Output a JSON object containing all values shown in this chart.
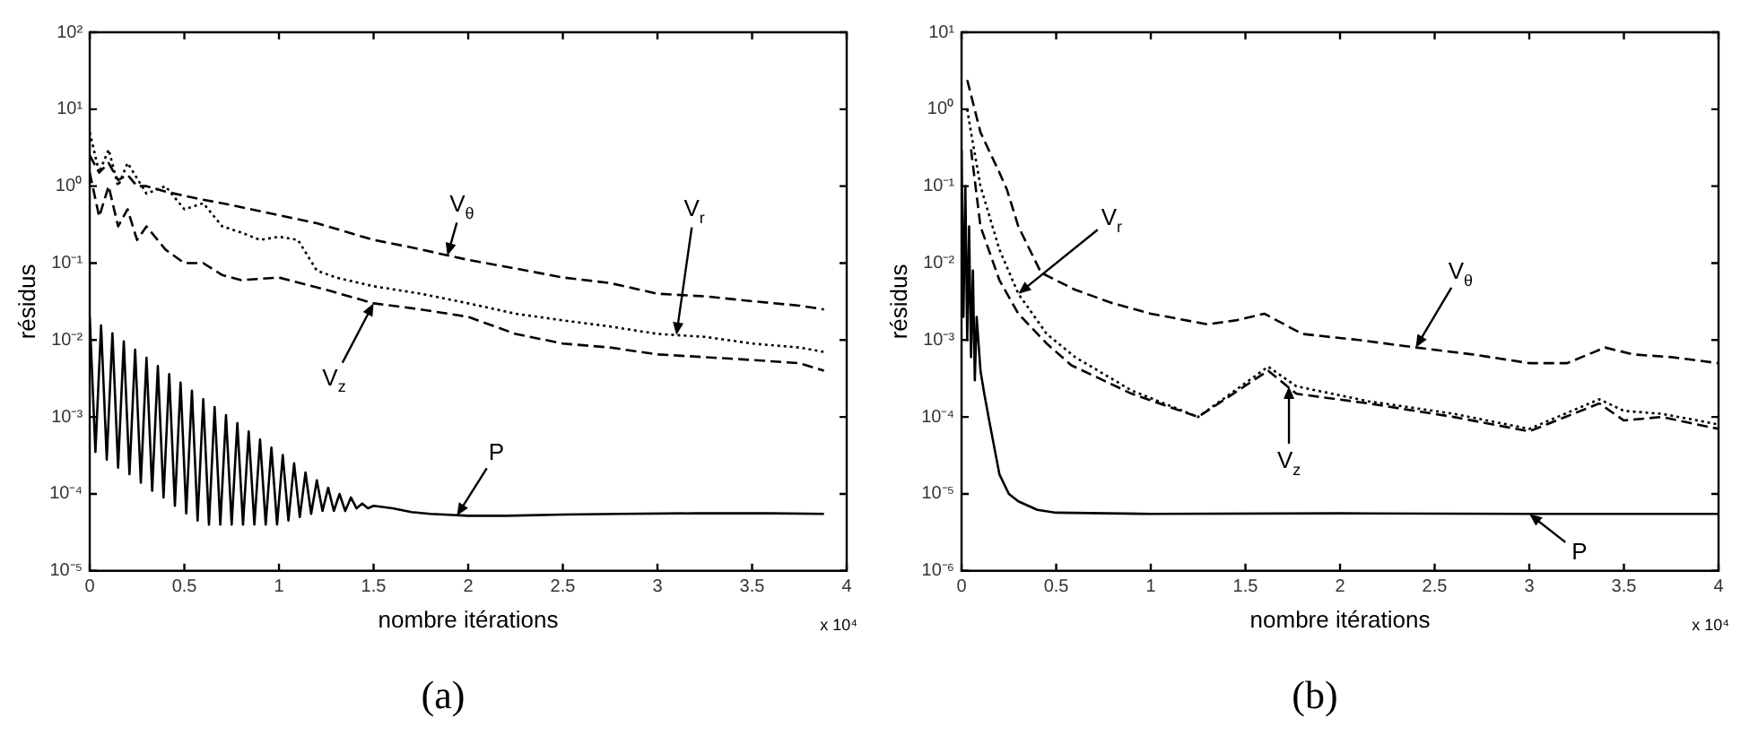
{
  "chart_data": [
    {
      "type": "line",
      "title": "(a)",
      "xlabel": "nombre itérations",
      "ylabel": "résidus",
      "log": "y",
      "grid": false,
      "legend": false,
      "marker": "none",
      "xlim": [
        0,
        4
      ],
      "xticks": [
        0,
        0.5,
        1,
        1.5,
        2,
        2.5,
        3,
        3.5,
        4
      ],
      "ylim": [
        1e-05,
        100
      ],
      "yticks": [
        {
          "value": 1e-05,
          "label": "10⁻⁵"
        },
        {
          "value": 0.0001,
          "label": "10⁻⁴"
        },
        {
          "value": 0.001,
          "label": "10⁻³"
        },
        {
          "value": 0.01,
          "label": "10⁻²"
        },
        {
          "value": 0.1,
          "label": "10⁻¹"
        },
        {
          "value": 1,
          "label": "10⁰"
        },
        {
          "value": 10,
          "label": "10¹"
        },
        {
          "value": 100,
          "label": "10²"
        }
      ],
      "annotations": [
        {
          "text": "V$_{θ}$",
          "x": 1.89,
          "y": 0.125
        },
        {
          "text": "V$_{r}$",
          "x": 3.1,
          "y": 0.0116
        },
        {
          "text": "V$_{z}$",
          "x": 1.5,
          "y": 0.03
        },
        {
          "text": "P",
          "x": 1.94,
          "y": 5.2e-05
        },
        "x 10⁴"
      ],
      "series": [
        {
          "color": "#000000",
          "line_style": "dashed",
          "x": [
            0,
            0.05,
            0.1,
            0.15,
            0.2,
            0.25,
            0.3,
            0.4,
            0.58,
            0.7,
            1,
            1.2,
            1.5,
            1.7,
            2,
            2.25,
            2.5,
            2.75,
            3,
            3.25,
            3.5,
            3.75,
            3.88
          ],
          "values": [
            2.5,
            1.5,
            2.0,
            1.2,
            1.4,
            1.0,
            1.0,
            0.85,
            0.68,
            0.6,
            0.42,
            0.33,
            0.2,
            0.16,
            0.11,
            0.085,
            0.065,
            0.055,
            0.04,
            0.037,
            0.032,
            0.028,
            0.025
          ]
        },
        {
          "color": "#000000",
          "line_style": "dotted",
          "x": [
            0,
            0.05,
            0.1,
            0.15,
            0.2,
            0.3,
            0.4,
            0.5,
            0.6,
            0.7,
            0.8,
            0.9,
            1,
            1.1,
            1.2,
            1.3,
            1.5,
            1.75,
            2,
            2.25,
            2.5,
            2.75,
            3,
            3.25,
            3.5,
            3.75,
            3.88
          ],
          "values": [
            5,
            1.5,
            3,
            1,
            2,
            0.8,
            1.0,
            0.5,
            0.6,
            0.3,
            0.25,
            0.2,
            0.22,
            0.2,
            0.08,
            0.065,
            0.05,
            0.04,
            0.03,
            0.022,
            0.018,
            0.015,
            0.012,
            0.011,
            0.009,
            0.008,
            0.007
          ]
        },
        {
          "color": "#000000",
          "line_style": "dashed",
          "x": [
            0,
            0.05,
            0.1,
            0.15,
            0.2,
            0.25,
            0.3,
            0.4,
            0.5,
            0.6,
            0.7,
            0.8,
            1,
            1.25,
            1.5,
            1.75,
            2,
            2.25,
            2.5,
            2.75,
            3,
            3.25,
            3.5,
            3.75,
            3.88
          ],
          "values": [
            1.5,
            0.4,
            1.0,
            0.3,
            0.5,
            0.2,
            0.3,
            0.15,
            0.1,
            0.1,
            0.07,
            0.06,
            0.065,
            0.045,
            0.03,
            0.025,
            0.02,
            0.012,
            0.009,
            0.008,
            0.0065,
            0.006,
            0.0055,
            0.005,
            0.004
          ]
        },
        {
          "color": "#000000",
          "line_style": "solid",
          "x": [
            0,
            0.03,
            0.06,
            0.09,
            0.12,
            0.15,
            0.18,
            0.21,
            0.24,
            0.27,
            0.3,
            0.33,
            0.36,
            0.39,
            0.42,
            0.45,
            0.48,
            0.51,
            0.54,
            0.57,
            0.6,
            0.63,
            0.66,
            0.69,
            0.72,
            0.75,
            0.78,
            0.81,
            0.84,
            0.87,
            0.9,
            0.93,
            0.96,
            0.99,
            1.02,
            1.05,
            1.08,
            1.11,
            1.14,
            1.17,
            1.2,
            1.23,
            1.26,
            1.29,
            1.32,
            1.35,
            1.38,
            1.41,
            1.44,
            1.47,
            1.5,
            1.6,
            1.7,
            1.8,
            2,
            2.2,
            2.5,
            2.8,
            3.2,
            3.6,
            3.88
          ],
          "values": [
            0.02,
            0.00035,
            0.0155,
            0.00028,
            0.0122,
            0.00022,
            0.0096,
            0.00018,
            0.0075,
            0.00014,
            0.0059,
            0.00011,
            0.0046,
            9e-05,
            0.0036,
            7e-05,
            0.0028,
            5.6e-05,
            0.0022,
            4.5e-05,
            0.0017,
            4e-05,
            0.00135,
            4e-05,
            0.00106,
            4e-05,
            0.00083,
            4e-05,
            0.00065,
            4e-05,
            0.00051,
            4e-05,
            0.0004,
            4e-05,
            0.00032,
            4.5e-05,
            0.00025,
            5e-05,
            0.00019,
            5.5e-05,
            0.00015,
            6e-05,
            0.00012,
            6e-05,
            0.0001,
            6e-05,
            9e-05,
            6.5e-05,
            7.5e-05,
            6.5e-05,
            7e-05,
            6.5e-05,
            5.8e-05,
            5.5e-05,
            5.2e-05,
            5.2e-05,
            5.4e-05,
            5.5e-05,
            5.6e-05,
            5.6e-05,
            5.5e-05
          ]
        }
      ]
    },
    {
      "type": "line",
      "title": "(b)",
      "xlabel": "nombre itérations",
      "ylabel": "résidus",
      "log": "y",
      "grid": false,
      "legend": false,
      "marker": "none",
      "xlim": [
        0,
        4
      ],
      "xticks": [
        0,
        0.5,
        1,
        1.5,
        2,
        2.5,
        3,
        3.5,
        4
      ],
      "ylim": [
        1e-06,
        10
      ],
      "yticks": [
        {
          "value": 1e-06,
          "label": "10⁻⁶"
        },
        {
          "value": 1e-05,
          "label": "10⁻⁵"
        },
        {
          "value": 0.0001,
          "label": "10⁻⁴"
        },
        {
          "value": 0.001,
          "label": "10⁻³"
        },
        {
          "value": 0.01,
          "label": "10⁻²"
        },
        {
          "value": 0.1,
          "label": "10⁻¹"
        },
        {
          "value": 1,
          "label": "10⁰"
        },
        {
          "value": 10,
          "label": "10¹"
        }
      ],
      "annotations": [
        {
          "text": "V$_{r}$",
          "x": 0.3,
          "y": 0.004
        },
        {
          "text": "V$_{θ}$",
          "x": 2.4,
          "y": 0.0008
        },
        {
          "text": "V$_{z}$",
          "x": 1.73,
          "y": 0.00025
        },
        {
          "text": "P",
          "x": 3,
          "y": 5.5e-06
        },
        "x 10⁴"
      ],
      "series": [
        {
          "color": "#000000",
          "line_style": "dashed",
          "x": [
            0.03,
            0.1,
            0.2,
            0.24,
            0.3,
            0.42,
            0.6,
            0.8,
            1,
            1.3,
            1.45,
            1.6,
            1.8,
            2.1,
            2.4,
            2.7,
            3,
            3.2,
            3.4,
            3.55,
            3.75,
            4
          ],
          "values": [
            2.4,
            0.5,
            0.15,
            0.09,
            0.03,
            0.0075,
            0.0045,
            0.003,
            0.0022,
            0.0016,
            0.0018,
            0.0022,
            0.0012,
            0.001,
            0.0008,
            0.00065,
            0.0005,
            0.0005,
            0.0008,
            0.00065,
            0.0006,
            0.0005
          ]
        },
        {
          "color": "#000000",
          "line_style": "dotted",
          "x": [
            0.03,
            0.05,
            0.1,
            0.2,
            0.3,
            0.45,
            0.6,
            0.9,
            1.25,
            1.62,
            1.77,
            2.15,
            2.6,
            3,
            3.37,
            3.5,
            3.7,
            4
          ],
          "values": [
            1.0,
            0.5,
            0.1,
            0.015,
            0.004,
            0.0012,
            0.0006,
            0.00022,
            0.0001,
            0.00045,
            0.00025,
            0.00016,
            0.00011,
            7e-05,
            0.00017,
            0.00012,
            0.00011,
            8e-05
          ]
        },
        {
          "color": "#000000",
          "line_style": "dashed",
          "x": [
            0.05,
            0.1,
            0.2,
            0.3,
            0.45,
            0.58,
            0.9,
            1.25,
            1.62,
            1.77,
            2.15,
            2.6,
            3,
            3.37,
            3.5,
            3.7,
            4
          ],
          "values": [
            0.3,
            0.03,
            0.006,
            0.0022,
            0.0009,
            0.00047,
            0.0002,
            0.0001,
            0.0004,
            0.0002,
            0.00015,
            0.0001,
            6.5e-05,
            0.00015,
            9e-05,
            0.0001,
            7e-05
          ]
        },
        {
          "color": "#000000",
          "line_style": "solid",
          "x": [
            0,
            0.01,
            0.02,
            0.03,
            0.04,
            0.05,
            0.06,
            0.07,
            0.08,
            0.1,
            0.12,
            0.15,
            0.2,
            0.25,
            0.3,
            0.4,
            0.5,
            1,
            2,
            3,
            4
          ],
          "values": [
            0.3,
            0.002,
            0.1,
            0.001,
            0.03,
            0.0006,
            0.008,
            0.0003,
            0.002,
            0.0004,
            0.0002,
            8e-05,
            1.8e-05,
            1e-05,
            8e-06,
            6.2e-06,
            5.7e-06,
            5.5e-06,
            5.6e-06,
            5.5e-06,
            5.5e-06
          ]
        }
      ]
    }
  ]
}
